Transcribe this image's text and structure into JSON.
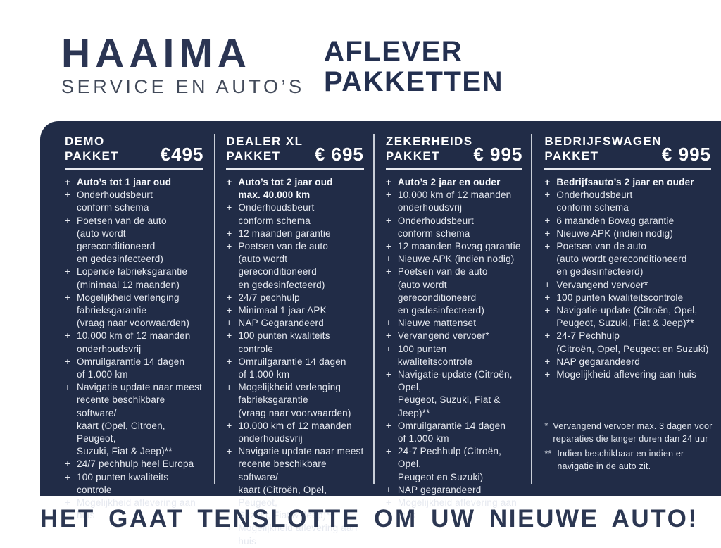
{
  "header": {
    "logo_title": "HAAIMA",
    "logo_subtitle": "SERVICE EN AUTO’S",
    "page_title": "AFLEVER\nPAKKETTEN"
  },
  "bullet": "+",
  "packages": [
    {
      "name": "DEMO\nPAKKET",
      "price": "€495",
      "items": [
        "Auto’s tot 1 jaar oud",
        "Onderhoudsbeurt\nconform schema",
        "Poetsen van de auto\n(auto wordt gereconditioneerd\nen gedesinfecteerd)",
        "Lopende fabrieksgarantie\n(minimaal 12 maanden)",
        "Mogelijkheid verlenging\nfabrieksgarantie\n(vraag naar voorwaarden)",
        "10.000 km of 12 maanden\nonderhoudsvrij",
        "Omruilgarantie 14 dagen\nof 1.000 km",
        "Navigatie update naar meest\nrecente beschikbare software/\nkaart (Opel, Citroen, Peugeot,\nSuzuki, Fiat & Jeep)**",
        "24/7 pechhulp heel Europa",
        "100 punten kwaliteits controle",
        "Mogelijkheid aflevering aan huis"
      ]
    },
    {
      "name": "DEALER XL\nPAKKET",
      "price": "€ 695",
      "items": [
        "Auto’s tot 2 jaar oud\nmax. 40.000 km",
        "Onderhoudsbeurt\nconform schema",
        "12 maanden garantie",
        "Poetsen van de auto\n(auto wordt gereconditioneerd\nen gedesinfecteerd)",
        "24/7 pechhulp",
        "Minimaal 1 jaar APK",
        "NAP Gegarandeerd",
        "100 punten kwaliteits controle",
        "Omruilgarantie 14 dagen\nof 1.000 km",
        "Mogelijkheid verlenging\nfabrieksgarantie\n(vraag naar voorwaarden)",
        "10.000 km of 12 maanden\nonderhoudsvrij",
        "Navigatie update naar meest\nrecente beschikbare software/\nkaart (Citroën, Opel, Peugeot,\nSuzuki, Fiat & Jeep)**",
        "Mogelijkheid aflevering aan huis"
      ]
    },
    {
      "name": "ZEKERHEIDS\nPAKKET",
      "price": "€ 995",
      "items": [
        "Auto’s 2 jaar en ouder",
        "10.000 km of 12 maanden\nonderhoudsvrij",
        "Onderhoudsbeurt\nconform schema",
        "12 maanden Bovag garantie",
        "Nieuwe APK (indien nodig)",
        "Poetsen van de auto\n(auto wordt gereconditioneerd\nen gedesinfecteerd)",
        "Nieuwe mattenset",
        "Vervangend vervoer*",
        "100 punten kwaliteitscontrole",
        "Navigatie-update (Citroën, Opel,\nPeugeot, Suzuki, Fiat & Jeep)**",
        "Omruilgarantie 14 dagen\nof 1.000 km",
        "24-7 Pechhulp (Citroën, Opel,\nPeugeot en Suzuki)",
        "NAP gegarandeerd",
        "Mogelijkheid aflevering aan huis"
      ]
    },
    {
      "name": "BEDRIJFSWAGEN\nPAKKET",
      "price": "€ 995",
      "items": [
        "Bedrijfsauto’s 2 jaar en ouder",
        "Onderhoudsbeurt\nconform schema",
        "6 maanden Bovag garantie",
        "Nieuwe APK (indien nodig)",
        "Poetsen van de auto\n(auto wordt gereconditioneerd\nen gedesinfecteerd)",
        "Vervangend vervoer*",
        "100 punten kwaliteitscontrole",
        "Navigatie-update (Citroën, Opel,\nPeugeot, Suzuki, Fiat & Jeep)**",
        "24-7 Pechhulp\n(Citroën, Opel, Peugeot en Suzuki)",
        "NAP gegarandeerd",
        "Mogelijkheid aflevering aan huis"
      ]
    }
  ],
  "footnotes": [
    {
      "marker": "*",
      "text": "Vervangend vervoer max. 3 dagen voor\nreparaties die langer duren dan 24 uur"
    },
    {
      "marker": "**",
      "text": "Indien beschikbaar en indien er\nnavigatie in de auto zit."
    }
  ],
  "tagline": "HET GAAT TENSLOTTE OM UW NIEUWE AUTO!",
  "colors": {
    "panel_bg": "#212c47",
    "logo_navy": "#2b3553",
    "title_navy": "#243050",
    "item_text": "#e6e9f0",
    "divider": "#c9ced8",
    "tagline_navy": "#2c3752",
    "background": "#ffffff"
  }
}
